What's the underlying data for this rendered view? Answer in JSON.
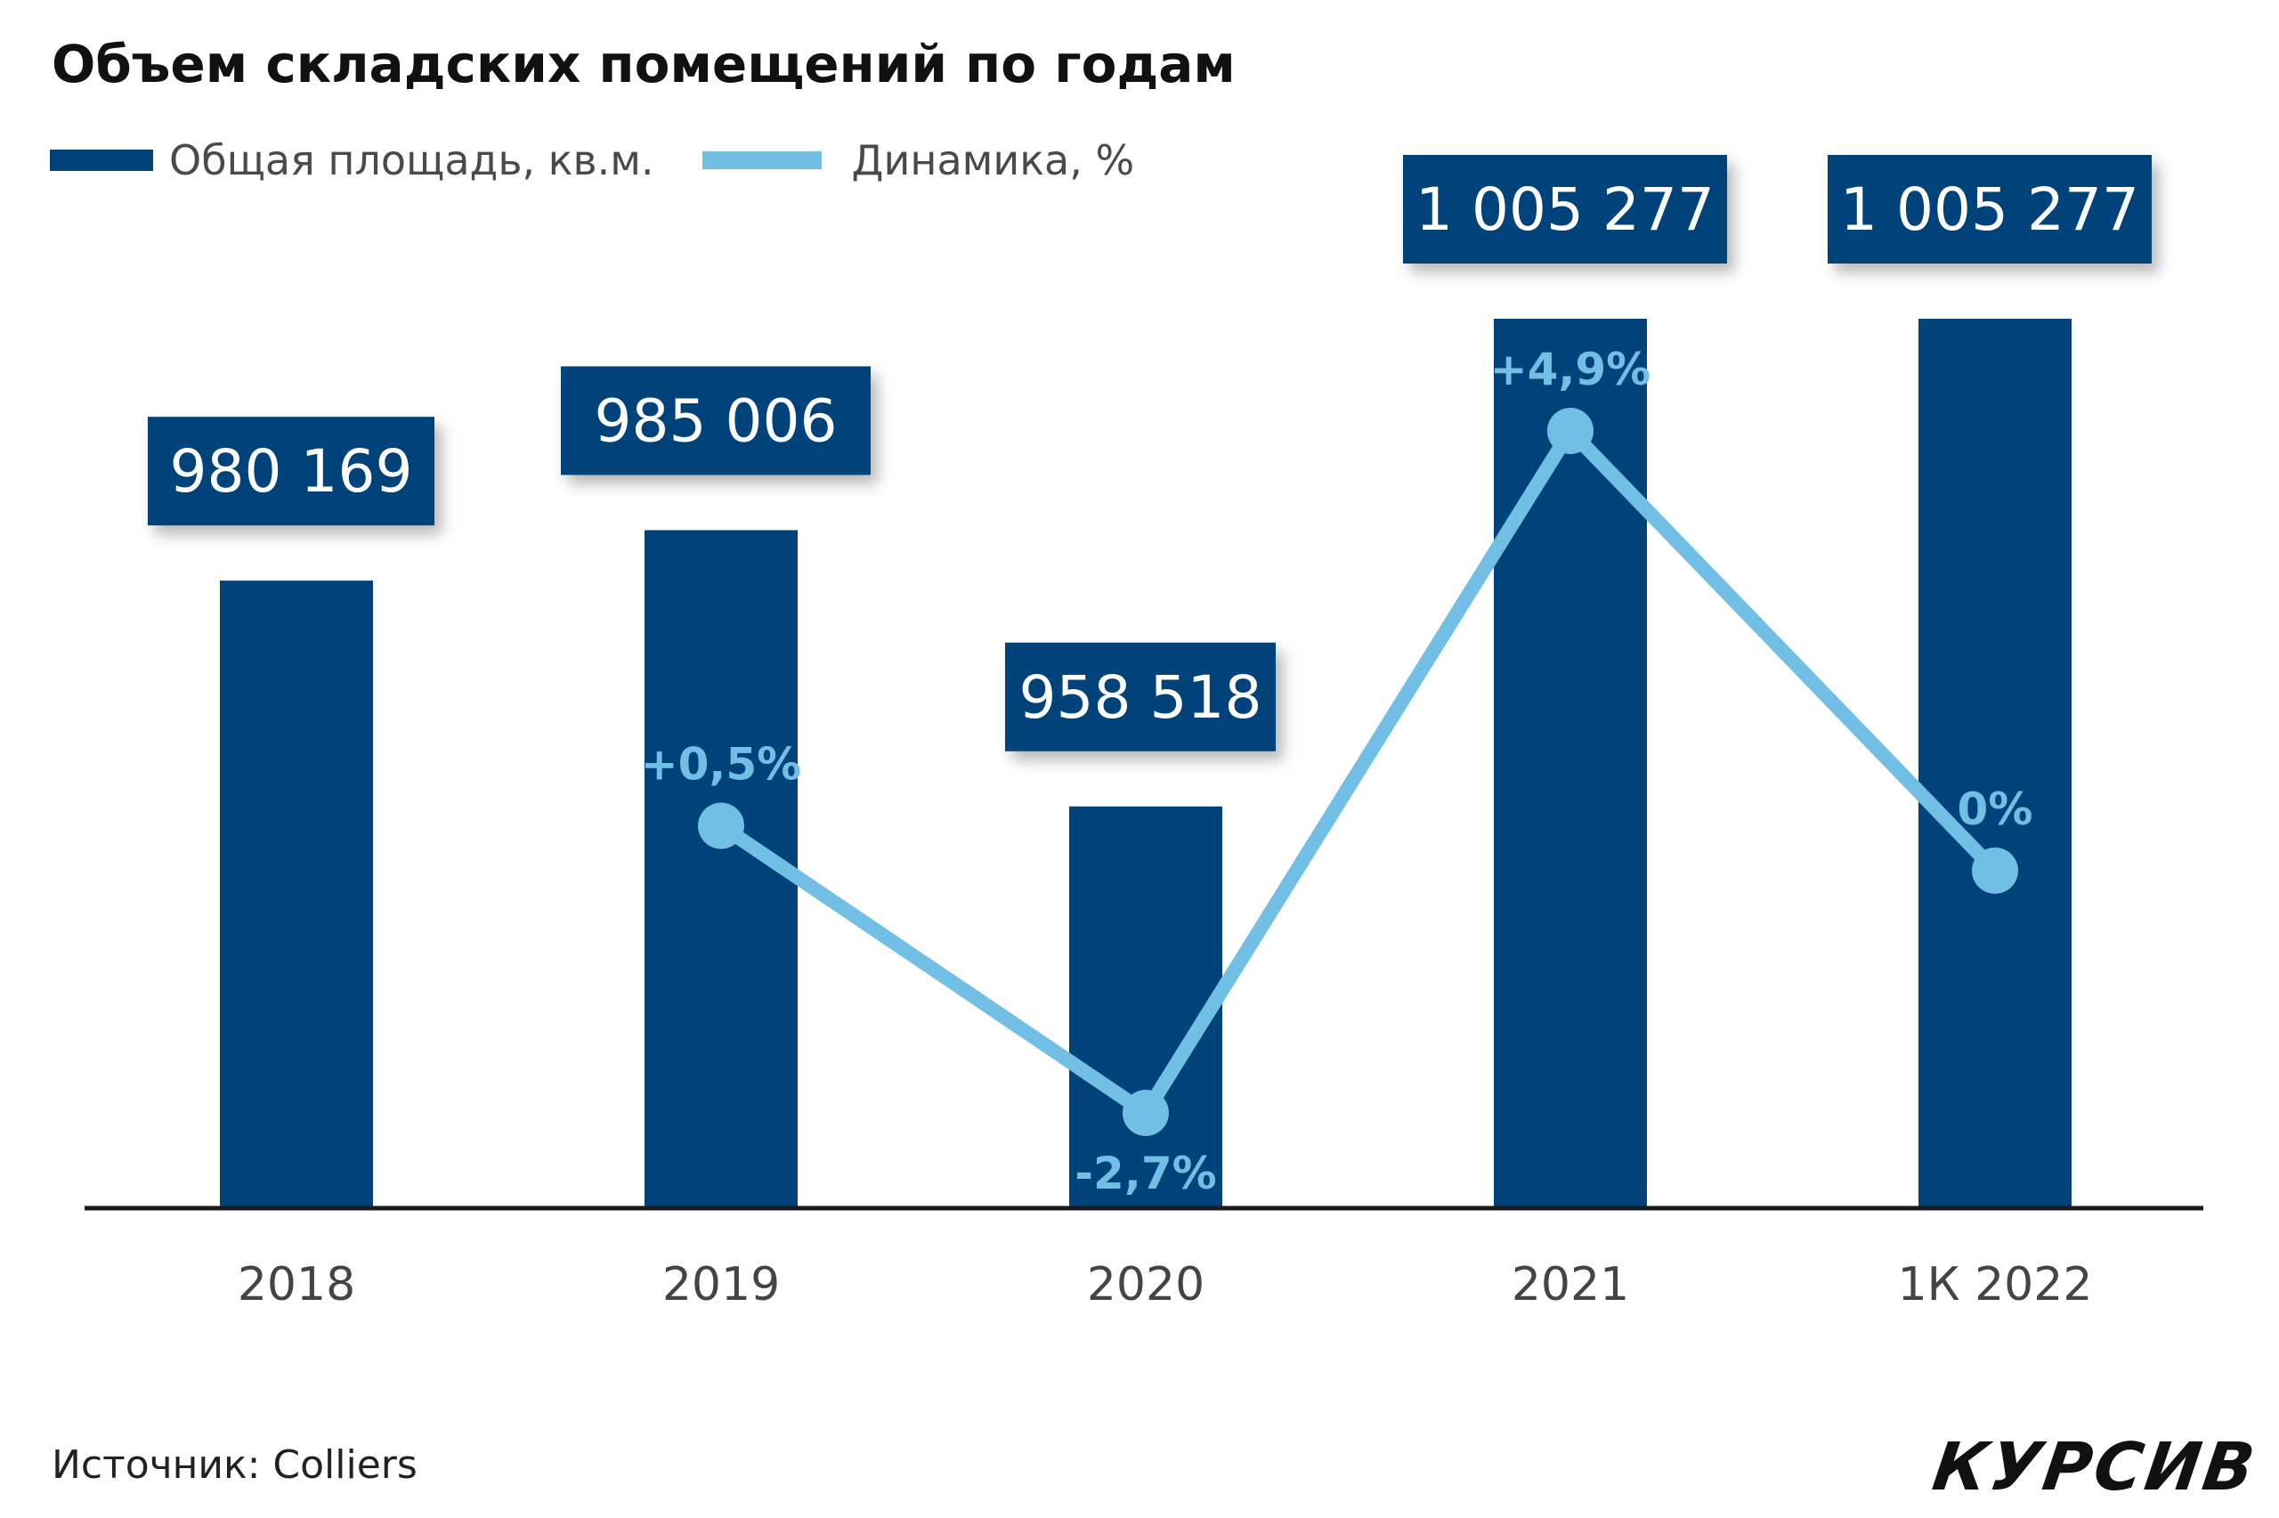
{
  "title": "Объем складских помещений по годам",
  "source": "Источник: Colliers",
  "brand": "КУРСИВ",
  "colors": {
    "bar": "#00427a",
    "line": "#72bfe6",
    "axis": "#1a1a1a"
  },
  "chart_data": {
    "type": "bar",
    "title": "Объем складских помещений по годам",
    "categories": [
      "2018",
      "2019",
      "2020",
      "2021",
      "1К 2022"
    ],
    "legend_position": "top-left",
    "grid": false,
    "series": [
      {
        "name": "Общая площадь, кв.м.",
        "type": "bar",
        "values": [
          980169,
          985006,
          958518,
          1005277,
          1005277
        ],
        "labels": [
          "980 169",
          "985 006",
          "958 518",
          "1 005 277",
          "1 005 277"
        ]
      },
      {
        "name": "Динамика, %",
        "type": "line",
        "values": [
          null,
          0.5,
          -2.7,
          4.9,
          0
        ],
        "labels": [
          "",
          "+0,5%",
          "-2,7%",
          "+4,9%",
          "0%"
        ]
      }
    ]
  }
}
